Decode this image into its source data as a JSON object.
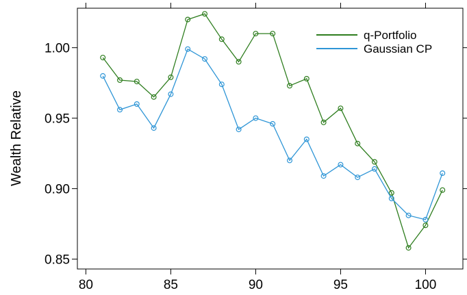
{
  "chart_data": {
    "type": "line",
    "title": "",
    "xlabel": "",
    "ylabel": "Wealth Relative",
    "xlim": [
      79.5,
      102.2
    ],
    "ylim": [
      0.843,
      1.028
    ],
    "xticks": [
      80,
      85,
      90,
      95,
      100
    ],
    "yticks": [
      0.85,
      0.9,
      0.95,
      1.0
    ],
    "xtick_labels": [
      "80",
      "85",
      "90",
      "95",
      "100"
    ],
    "ytick_labels": [
      "0.85",
      "0.90",
      "0.95",
      "1.00"
    ],
    "grid": false,
    "legend_position": "top-right",
    "x": [
      81,
      82,
      83,
      84,
      85,
      86,
      87,
      88,
      89,
      90,
      91,
      92,
      93,
      94,
      95,
      96,
      97,
      98,
      99,
      100,
      101
    ],
    "series": [
      {
        "name": "q-Portfolio",
        "color": "#2e7d1e",
        "marker": "open-circle",
        "values": [
          0.993,
          0.977,
          0.976,
          0.965,
          0.979,
          1.02,
          1.024,
          1.006,
          0.99,
          1.01,
          1.01,
          0.973,
          0.978,
          0.947,
          0.957,
          0.932,
          0.919,
          0.897,
          0.858,
          0.874,
          0.899
        ]
      },
      {
        "name": "Gaussian CP",
        "color": "#2e95d6",
        "marker": "open-circle",
        "values": [
          0.98,
          0.956,
          0.96,
          0.943,
          0.967,
          0.999,
          0.992,
          0.974,
          0.942,
          0.95,
          0.946,
          0.92,
          0.935,
          0.909,
          0.917,
          0.908,
          0.914,
          0.893,
          0.881,
          0.878,
          0.911
        ]
      }
    ]
  }
}
